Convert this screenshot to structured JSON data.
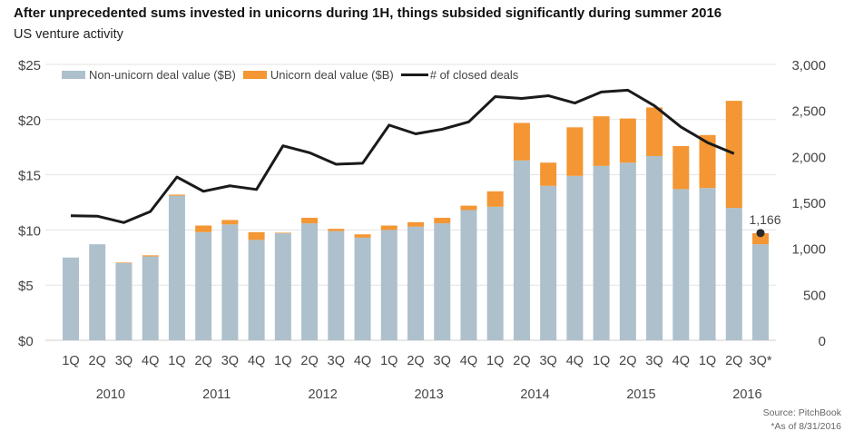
{
  "title": "After unprecedented sums invested in unicorns during 1H, things subsided significantly during summer 2016",
  "subtitle": "US venture activity",
  "source": "Source: PitchBook",
  "footnote": "*As of 8/31/2016",
  "chart_data": {
    "type": "bar",
    "stacked": true,
    "categories": [
      "1Q",
      "2Q",
      "3Q",
      "4Q",
      "1Q",
      "2Q",
      "3Q",
      "4Q",
      "1Q",
      "2Q",
      "3Q",
      "4Q",
      "1Q",
      "2Q",
      "3Q",
      "4Q",
      "1Q",
      "2Q",
      "3Q",
      "4Q",
      "1Q",
      "2Q",
      "3Q",
      "4Q",
      "1Q",
      "2Q",
      "3Q*"
    ],
    "years": [
      "2010",
      "2011",
      "2012",
      "2013",
      "2014",
      "2015",
      "2016"
    ],
    "series": [
      {
        "name": "Non-unicorn deal value ($B)",
        "type": "bar",
        "axis": "left",
        "color": "#adc0cc",
        "values": [
          7.5,
          8.7,
          7.0,
          7.6,
          13.1,
          9.8,
          10.5,
          9.1,
          9.7,
          10.6,
          9.9,
          9.3,
          10.0,
          10.3,
          10.6,
          11.8,
          12.1,
          16.3,
          14.0,
          14.9,
          15.8,
          16.1,
          16.7,
          13.7,
          13.8,
          12.0,
          8.7
        ]
      },
      {
        "name": "Unicorn deal value ($B)",
        "type": "bar",
        "axis": "left",
        "color": "#f39633",
        "values": [
          0,
          0,
          0.05,
          0.1,
          0.1,
          0.6,
          0.4,
          0.7,
          0.05,
          0.5,
          0.2,
          0.3,
          0.4,
          0.4,
          0.5,
          0.4,
          1.4,
          3.4,
          2.1,
          4.4,
          4.5,
          4.0,
          4.4,
          3.9,
          4.8,
          9.7,
          1.0
        ]
      },
      {
        "name": "# of closed deals",
        "type": "line",
        "axis": "right",
        "color": "#1a1a1a",
        "values": [
          1355,
          1350,
          1280,
          1400,
          1775,
          1620,
          1680,
          1640,
          2115,
          2040,
          1915,
          1925,
          2340,
          2245,
          2295,
          2375,
          2650,
          2630,
          2660,
          2580,
          2700,
          2720,
          2550,
          2320,
          2150,
          2030,
          1166
        ]
      }
    ],
    "annotation": "1,166",
    "left_axis": {
      "ticks": [
        "$0",
        "$5",
        "$10",
        "$15",
        "$20",
        "$25"
      ],
      "range": [
        0,
        25
      ]
    },
    "right_axis": {
      "ticks": [
        "0",
        "500",
        "1,000",
        "1,500",
        "2,000",
        "2,500",
        "3,000"
      ],
      "range": [
        0,
        3000
      ]
    },
    "grid": true,
    "legend": "top-left"
  }
}
